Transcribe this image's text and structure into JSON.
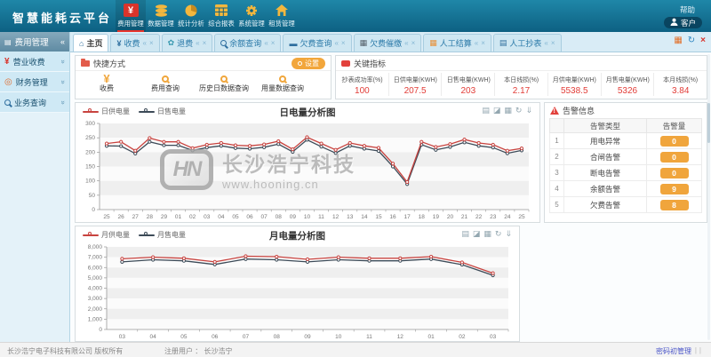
{
  "header": {
    "logo": "智慧能耗云平台",
    "nav": [
      {
        "icon": "yen-icon",
        "label": "费用管理",
        "active": true
      },
      {
        "icon": "database-icon",
        "label": "数据管理",
        "active": false
      },
      {
        "icon": "pie-chart-icon",
        "label": "统计分析",
        "active": false
      },
      {
        "icon": "table-icon",
        "label": "综合报表",
        "active": false
      },
      {
        "icon": "gear-icon",
        "label": "系统管理",
        "active": false
      },
      {
        "icon": "home-icon",
        "label": "租赁管理",
        "active": false
      }
    ],
    "help": "帮助",
    "user": "客户"
  },
  "tabs": [
    {
      "icon": "home-icon",
      "label": "主页",
      "active": true
    },
    {
      "icon": "yen-icon",
      "label": "收费",
      "active": false
    },
    {
      "icon": "refund-icon",
      "label": "退费",
      "active": false
    },
    {
      "icon": "magnifier-icon",
      "label": "余额查询",
      "active": false
    },
    {
      "icon": "card-icon",
      "label": "欠费查询",
      "active": false
    },
    {
      "icon": "briefcase-icon",
      "label": "欠费催缴",
      "active": false
    },
    {
      "icon": "cart-icon",
      "label": "人工结算",
      "active": false
    },
    {
      "icon": "meter-icon",
      "label": "人工抄表",
      "active": false
    }
  ],
  "sidebar": {
    "header": "费用管理",
    "items": [
      {
        "icon": "yen-icon",
        "label": "营业收费"
      },
      {
        "icon": "finance-icon",
        "label": "财务管理"
      },
      {
        "icon": "magnifier-icon",
        "label": "业务查询"
      }
    ]
  },
  "quick": {
    "title": "快捷方式",
    "settings_label": "设置",
    "items": [
      {
        "icon": "yen-icon",
        "label": "收费"
      },
      {
        "icon": "magnifier-icon",
        "label": "费用查询"
      },
      {
        "icon": "magnifier-icon",
        "label": "历史日数据查询"
      },
      {
        "icon": "magnifier-icon",
        "label": "用量数据查询"
      }
    ]
  },
  "indicators": {
    "title": "关键指标",
    "items": [
      {
        "label": "抄表成功率(%)",
        "value": "100"
      },
      {
        "label": "日供电量(KWH)",
        "value": "207.5"
      },
      {
        "label": "日售电量(KWH)",
        "value": "203"
      },
      {
        "label": "本日线损(%)",
        "value": "2.17"
      },
      {
        "label": "月供电量(KWH)",
        "value": "5538.5"
      },
      {
        "label": "月售电量(KWH)",
        "value": "5326"
      },
      {
        "label": "本月线损(%)",
        "value": "3.84"
      }
    ]
  },
  "alarms": {
    "title": "告警信息",
    "col_type": "告警类型",
    "col_count": "告警量",
    "rows": [
      {
        "no": "1",
        "type": "用电异常",
        "count": "0"
      },
      {
        "no": "2",
        "type": "合闸告警",
        "count": "0"
      },
      {
        "no": "3",
        "type": "断电告警",
        "count": "0"
      },
      {
        "no": "4",
        "type": "余额告警",
        "count": "9"
      },
      {
        "no": "5",
        "type": "欠费告警",
        "count": "8"
      }
    ]
  },
  "watermark": {
    "logo": "HN",
    "line1": "长沙浩宁科技",
    "line2": "www.hooning.cn"
  },
  "footer": {
    "left": "长沙浩宁电子科技有限公司 版权所有",
    "center": "注册用户 ： 长沙浩宁",
    "right": "密码初管理"
  },
  "chart_data": [
    {
      "type": "line",
      "title": "日电量分析图",
      "categories": [
        "25",
        "26",
        "27",
        "28",
        "29",
        "01",
        "02",
        "03",
        "04",
        "05",
        "06",
        "07",
        "08",
        "09",
        "10",
        "11",
        "12",
        "13",
        "14",
        "15",
        "16",
        "17",
        "18",
        "19",
        "20",
        "21",
        "22",
        "23",
        "24",
        "25"
      ],
      "series": [
        {
          "name": "日供电量",
          "color": "#c8433f",
          "values": [
            230,
            236,
            205,
            249,
            236,
            236,
            214,
            226,
            232,
            224,
            222,
            227,
            238,
            210,
            252,
            230,
            208,
            232,
            222,
            215,
            160,
            96,
            236,
            218,
            228,
            244,
            232,
            226,
            205,
            213
          ]
        },
        {
          "name": "日售电量",
          "color": "#3d4b58",
          "values": [
            222,
            221,
            195,
            236,
            224,
            224,
            206,
            216,
            222,
            214,
            212,
            217,
            228,
            201,
            243,
            219,
            197,
            222,
            212,
            204,
            150,
            89,
            226,
            208,
            218,
            234,
            222,
            216,
            196,
            206
          ]
        }
      ],
      "xlabel": "",
      "ylabel": "",
      "ylim": [
        0,
        300
      ],
      "ytick": 50,
      "grid": "horizontal-bands",
      "legend_position": "top-left",
      "title_position": "top-center"
    },
    {
      "type": "line",
      "title": "月电量分析图",
      "categories": [
        "03",
        "04",
        "05",
        "06",
        "07",
        "08",
        "09",
        "10",
        "11",
        "12",
        "01",
        "02",
        "03"
      ],
      "series": [
        {
          "name": "月供电量",
          "color": "#c8433f",
          "values": [
            6850,
            7000,
            6900,
            6550,
            7100,
            7050,
            6800,
            7000,
            6900,
            6900,
            7050,
            6500,
            5450
          ]
        },
        {
          "name": "月售电量",
          "color": "#3d4b58",
          "values": [
            6550,
            6750,
            6650,
            6300,
            6820,
            6750,
            6550,
            6750,
            6650,
            6650,
            6820,
            6280,
            5250
          ]
        }
      ],
      "xlabel": "",
      "ylabel": "",
      "ylim": [
        0,
        8000
      ],
      "ytick": 1000,
      "grid": "horizontal-bands",
      "legend_position": "top-left",
      "title_position": "top-center"
    }
  ]
}
